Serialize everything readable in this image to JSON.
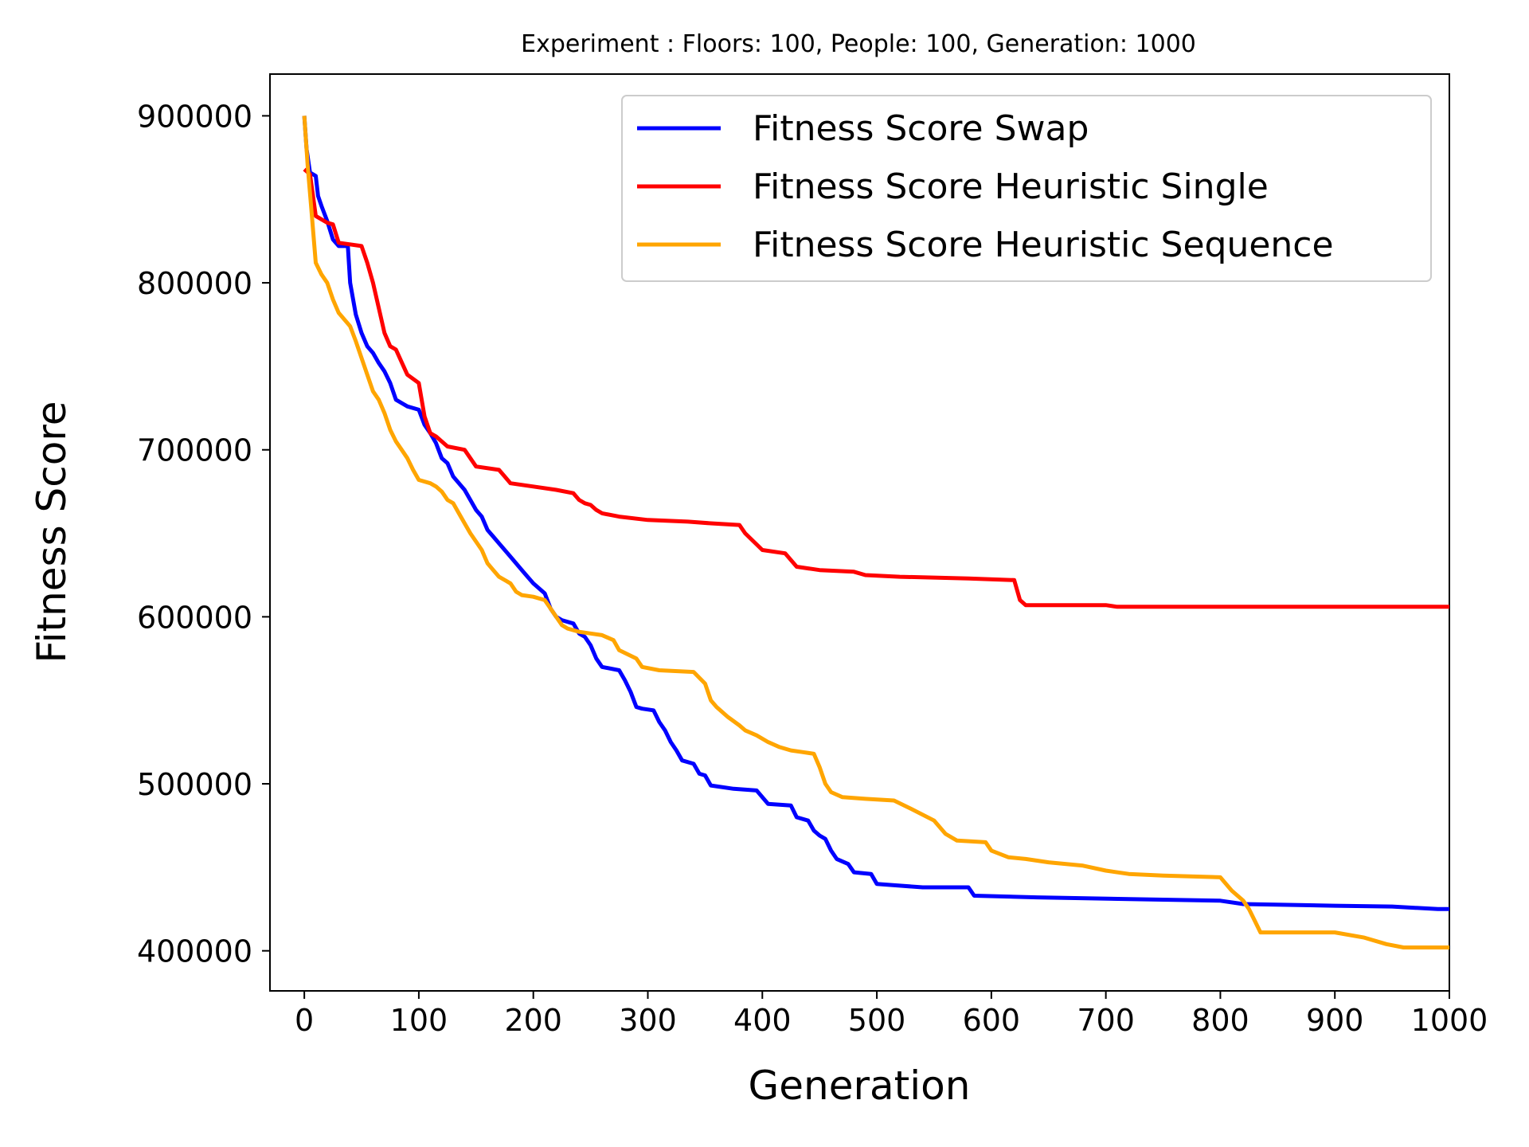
{
  "chart_data": {
    "type": "line",
    "title": "Experiment : Floors: 100, People: 100, Generation: 1000",
    "xlabel": "Generation",
    "ylabel": "Fitness Score",
    "xlim": [
      -30,
      1000
    ],
    "ylim": [
      376000,
      925000
    ],
    "xticks": [
      0,
      100,
      200,
      300,
      400,
      500,
      600,
      700,
      800,
      900,
      1000
    ],
    "yticks": [
      400000,
      500000,
      600000,
      700000,
      800000,
      900000
    ],
    "grid": false,
    "legend_position": "top-right",
    "series": [
      {
        "name": "Fitness Score Swap",
        "color": "#0000ff",
        "points": [
          [
            0,
            900000
          ],
          [
            2,
            880000
          ],
          [
            5,
            866000
          ],
          [
            10,
            864000
          ],
          [
            12,
            852000
          ],
          [
            15,
            846000
          ],
          [
            20,
            837000
          ],
          [
            25,
            826000
          ],
          [
            30,
            822000
          ],
          [
            38,
            822000
          ],
          [
            40,
            800000
          ],
          [
            45,
            781000
          ],
          [
            50,
            770000
          ],
          [
            55,
            762000
          ],
          [
            60,
            758000
          ],
          [
            65,
            752000
          ],
          [
            70,
            747000
          ],
          [
            75,
            740000
          ],
          [
            80,
            730000
          ],
          [
            90,
            726000
          ],
          [
            100,
            724000
          ],
          [
            105,
            715000
          ],
          [
            110,
            710000
          ],
          [
            115,
            704000
          ],
          [
            120,
            695000
          ],
          [
            125,
            692000
          ],
          [
            130,
            684000
          ],
          [
            140,
            676000
          ],
          [
            145,
            670000
          ],
          [
            150,
            664000
          ],
          [
            155,
            660000
          ],
          [
            160,
            652000
          ],
          [
            165,
            648000
          ],
          [
            170,
            644000
          ],
          [
            175,
            640000
          ],
          [
            180,
            636000
          ],
          [
            185,
            632000
          ],
          [
            190,
            628000
          ],
          [
            195,
            624000
          ],
          [
            200,
            620000
          ],
          [
            210,
            614000
          ],
          [
            215,
            605000
          ],
          [
            220,
            600000
          ],
          [
            225,
            598000
          ],
          [
            235,
            596000
          ],
          [
            240,
            590000
          ],
          [
            245,
            588000
          ],
          [
            250,
            583000
          ],
          [
            255,
            575000
          ],
          [
            260,
            570000
          ],
          [
            275,
            568000
          ],
          [
            280,
            562000
          ],
          [
            285,
            555000
          ],
          [
            290,
            546000
          ],
          [
            295,
            545000
          ],
          [
            305,
            544000
          ],
          [
            310,
            537000
          ],
          [
            315,
            532000
          ],
          [
            320,
            525000
          ],
          [
            325,
            520000
          ],
          [
            330,
            514000
          ],
          [
            340,
            512000
          ],
          [
            345,
            506000
          ],
          [
            350,
            505000
          ],
          [
            355,
            499000
          ],
          [
            375,
            497000
          ],
          [
            395,
            496000
          ],
          [
            405,
            488000
          ],
          [
            425,
            487000
          ],
          [
            430,
            480000
          ],
          [
            440,
            478000
          ],
          [
            445,
            472000
          ],
          [
            450,
            469000
          ],
          [
            455,
            467000
          ],
          [
            460,
            460000
          ],
          [
            465,
            455000
          ],
          [
            475,
            452000
          ],
          [
            480,
            447000
          ],
          [
            495,
            446000
          ],
          [
            500,
            440000
          ],
          [
            520,
            439000
          ],
          [
            540,
            438000
          ],
          [
            580,
            438000
          ],
          [
            585,
            433000
          ],
          [
            640,
            432000
          ],
          [
            720,
            431000
          ],
          [
            800,
            430000
          ],
          [
            820,
            428000
          ],
          [
            900,
            427000
          ],
          [
            950,
            426500
          ],
          [
            990,
            425000
          ],
          [
            1000,
            425000
          ]
        ]
      },
      {
        "name": "Fitness Score Heuristic Single",
        "color": "#ff0000",
        "points": [
          [
            0,
            868000
          ],
          [
            5,
            865000
          ],
          [
            10,
            840000
          ],
          [
            20,
            836000
          ],
          [
            25,
            835000
          ],
          [
            30,
            824000
          ],
          [
            50,
            822000
          ],
          [
            55,
            812000
          ],
          [
            60,
            800000
          ],
          [
            65,
            785000
          ],
          [
            70,
            770000
          ],
          [
            75,
            762000
          ],
          [
            80,
            760000
          ],
          [
            90,
            745000
          ],
          [
            100,
            740000
          ],
          [
            105,
            720000
          ],
          [
            110,
            710000
          ],
          [
            115,
            708000
          ],
          [
            125,
            702000
          ],
          [
            140,
            700000
          ],
          [
            150,
            690000
          ],
          [
            170,
            688000
          ],
          [
            175,
            684000
          ],
          [
            180,
            680000
          ],
          [
            200,
            678000
          ],
          [
            220,
            676000
          ],
          [
            235,
            674000
          ],
          [
            240,
            670000
          ],
          [
            245,
            668000
          ],
          [
            250,
            667000
          ],
          [
            255,
            664000
          ],
          [
            260,
            662000
          ],
          [
            275,
            660000
          ],
          [
            300,
            658000
          ],
          [
            335,
            657000
          ],
          [
            355,
            656000
          ],
          [
            380,
            655000
          ],
          [
            385,
            650000
          ],
          [
            400,
            640000
          ],
          [
            420,
            638000
          ],
          [
            425,
            634000
          ],
          [
            430,
            630000
          ],
          [
            440,
            629000
          ],
          [
            450,
            628000
          ],
          [
            480,
            627000
          ],
          [
            490,
            625000
          ],
          [
            520,
            624000
          ],
          [
            580,
            623000
          ],
          [
            620,
            622000
          ],
          [
            625,
            610000
          ],
          [
            630,
            607000
          ],
          [
            700,
            607000
          ],
          [
            710,
            606000
          ],
          [
            900,
            606000
          ],
          [
            1000,
            606000
          ]
        ]
      },
      {
        "name": "Fitness Score Heuristic Sequence",
        "color": "#ffa500",
        "points": [
          [
            0,
            900000
          ],
          [
            3,
            870000
          ],
          [
            6,
            845000
          ],
          [
            10,
            812000
          ],
          [
            15,
            805000
          ],
          [
            20,
            800000
          ],
          [
            25,
            790000
          ],
          [
            30,
            782000
          ],
          [
            40,
            774000
          ],
          [
            45,
            765000
          ],
          [
            50,
            755000
          ],
          [
            55,
            745000
          ],
          [
            60,
            735000
          ],
          [
            65,
            730000
          ],
          [
            70,
            722000
          ],
          [
            75,
            712000
          ],
          [
            80,
            705000
          ],
          [
            85,
            700000
          ],
          [
            90,
            695000
          ],
          [
            95,
            688000
          ],
          [
            100,
            682000
          ],
          [
            110,
            680000
          ],
          [
            115,
            678000
          ],
          [
            120,
            675000
          ],
          [
            125,
            670000
          ],
          [
            130,
            668000
          ],
          [
            135,
            662000
          ],
          [
            140,
            656000
          ],
          [
            145,
            650000
          ],
          [
            150,
            645000
          ],
          [
            155,
            640000
          ],
          [
            160,
            632000
          ],
          [
            165,
            628000
          ],
          [
            170,
            624000
          ],
          [
            180,
            620000
          ],
          [
            185,
            615000
          ],
          [
            190,
            613000
          ],
          [
            200,
            612000
          ],
          [
            210,
            610000
          ],
          [
            215,
            605000
          ],
          [
            220,
            600000
          ],
          [
            225,
            595000
          ],
          [
            230,
            593000
          ],
          [
            240,
            591000
          ],
          [
            250,
            590000
          ],
          [
            260,
            589000
          ],
          [
            270,
            586000
          ],
          [
            275,
            580000
          ],
          [
            290,
            575000
          ],
          [
            295,
            570000
          ],
          [
            310,
            568000
          ],
          [
            340,
            567000
          ],
          [
            350,
            560000
          ],
          [
            355,
            550000
          ],
          [
            360,
            546000
          ],
          [
            370,
            540000
          ],
          [
            380,
            535000
          ],
          [
            385,
            532000
          ],
          [
            395,
            529000
          ],
          [
            405,
            525000
          ],
          [
            415,
            522000
          ],
          [
            425,
            520000
          ],
          [
            435,
            519000
          ],
          [
            445,
            518000
          ],
          [
            450,
            510000
          ],
          [
            455,
            500000
          ],
          [
            460,
            495000
          ],
          [
            470,
            492000
          ],
          [
            490,
            491000
          ],
          [
            515,
            490000
          ],
          [
            530,
            485000
          ],
          [
            550,
            478000
          ],
          [
            560,
            470000
          ],
          [
            570,
            466000
          ],
          [
            595,
            465000
          ],
          [
            600,
            460000
          ],
          [
            615,
            456000
          ],
          [
            630,
            455000
          ],
          [
            650,
            453000
          ],
          [
            680,
            451000
          ],
          [
            700,
            448000
          ],
          [
            720,
            446000
          ],
          [
            750,
            445000
          ],
          [
            800,
            444000
          ],
          [
            810,
            436000
          ],
          [
            820,
            430000
          ],
          [
            825,
            425000
          ],
          [
            830,
            418000
          ],
          [
            835,
            411000
          ],
          [
            900,
            411000
          ],
          [
            925,
            408000
          ],
          [
            945,
            404000
          ],
          [
            960,
            402000
          ],
          [
            1000,
            402000
          ]
        ]
      }
    ]
  }
}
